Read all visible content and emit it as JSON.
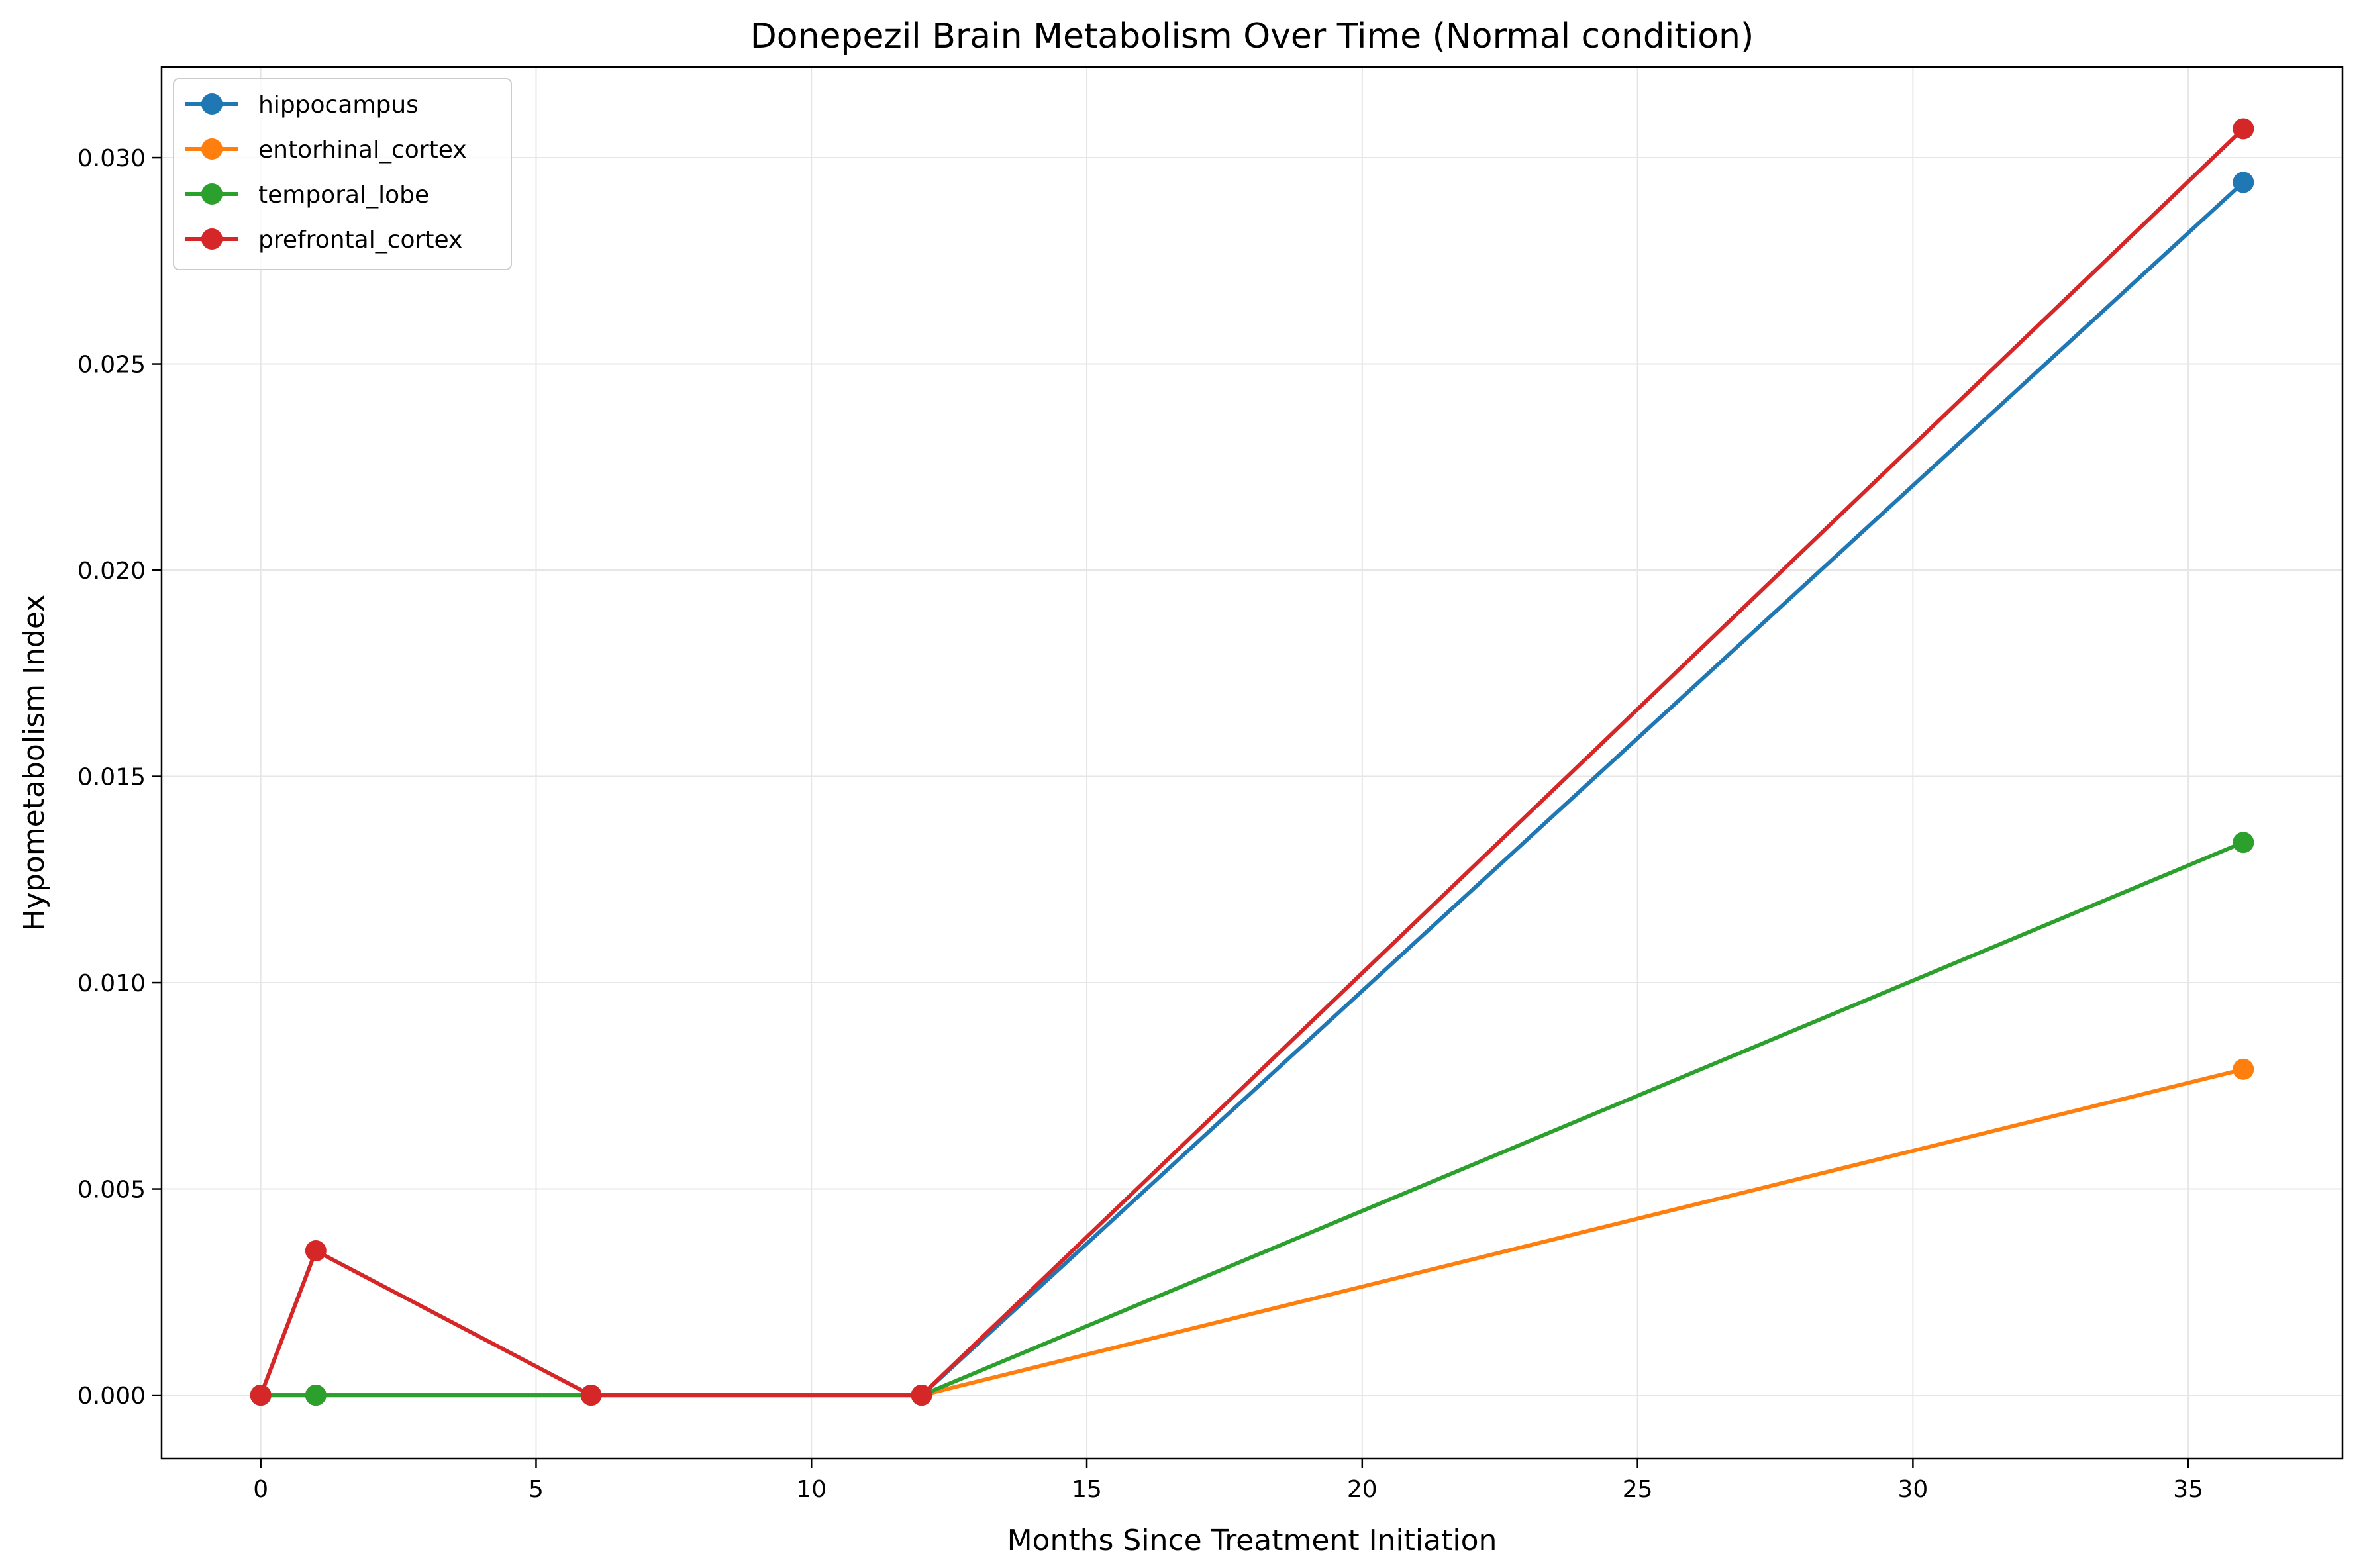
{
  "chart_data": {
    "type": "line",
    "title": "Donepezil Brain Metabolism Over Time (Normal condition)",
    "xlabel": "Months Since Treatment Initiation",
    "ylabel": "Hypometabolism Index",
    "xlim": [
      -1.8,
      37.8
    ],
    "ylim": [
      -0.00154,
      0.0322
    ],
    "x_ticks": [
      0,
      5,
      10,
      15,
      20,
      25,
      30,
      35
    ],
    "y_ticks": [
      0.0,
      0.005,
      0.01,
      0.015,
      0.02,
      0.025,
      0.03
    ],
    "y_tick_labels": [
      "0.000",
      "0.005",
      "0.010",
      "0.015",
      "0.020",
      "0.025",
      "0.030"
    ],
    "grid": true,
    "legend_position": "top-left",
    "series": [
      {
        "name": "hippocampus",
        "color": "#1f77b4",
        "x": [
          0,
          1,
          6,
          12,
          36
        ],
        "y": [
          0.0,
          0.0,
          0.0,
          0.0,
          0.0294
        ]
      },
      {
        "name": "entorhinal_cortex",
        "color": "#ff7f0e",
        "x": [
          0,
          1,
          6,
          12,
          36
        ],
        "y": [
          0.0,
          0.0,
          0.0,
          0.0,
          0.0079
        ]
      },
      {
        "name": "temporal_lobe",
        "color": "#2ca02c",
        "x": [
          0,
          1,
          6,
          12,
          36
        ],
        "y": [
          0.0,
          0.0,
          0.0,
          0.0,
          0.0134
        ]
      },
      {
        "name": "prefrontal_cortex",
        "color": "#d62728",
        "x": [
          0,
          1,
          6,
          12,
          36
        ],
        "y": [
          0.0,
          0.0035,
          0.0,
          0.0,
          0.0307
        ]
      }
    ]
  }
}
